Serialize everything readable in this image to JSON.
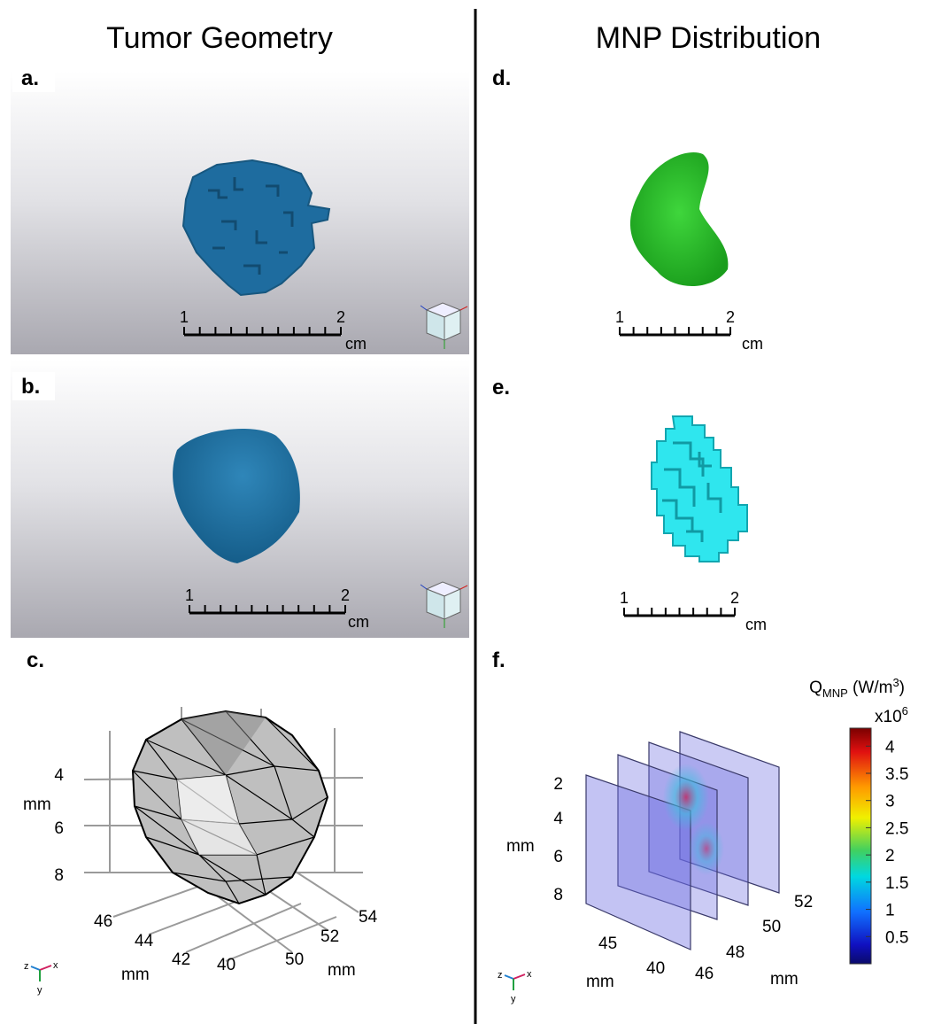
{
  "columns": [
    {
      "title": "Tumor Geometry"
    },
    {
      "title": "MNP Distribution"
    }
  ],
  "panels": {
    "a": {
      "label": "a.",
      "scale_bar": {
        "start": 1,
        "end": 2,
        "unit": "cm"
      }
    },
    "b": {
      "label": "b.",
      "scale_bar": {
        "start": 1,
        "end": 2,
        "unit": "cm"
      }
    },
    "c": {
      "label": "c.",
      "z_ticks": [
        4,
        6,
        8
      ],
      "z_label": "mm",
      "x_ticks": [
        46,
        44,
        42,
        40
      ],
      "x_label": "mm",
      "y_ticks": [
        50,
        52,
        54
      ],
      "y_label": "mm",
      "triad": [
        "z",
        "x",
        "y"
      ]
    },
    "d": {
      "label": "d.",
      "scale_bar": {
        "start": 1,
        "end": 2,
        "unit": "cm"
      }
    },
    "e": {
      "label": "e.",
      "scale_bar": {
        "start": 1,
        "end": 2,
        "unit": "cm"
      }
    },
    "f": {
      "label": "f.",
      "z_ticks": [
        2,
        4,
        6,
        8
      ],
      "z_label": "mm",
      "x_ticks": [
        45,
        40
      ],
      "x_label": "mm",
      "y_ticks": [
        46,
        48,
        50,
        52
      ],
      "y_label": "mm",
      "triad": [
        "z",
        "x",
        "y"
      ],
      "colorbar": {
        "title": {
          "symbol": "Q",
          "subscript": "MNP",
          "unit": " (W/m",
          "superscript": "3",
          "close": ")"
        },
        "multiplier": {
          "base": "x10",
          "exponent": "6"
        },
        "range": [
          0,
          4.33
        ],
        "ticks": [
          4,
          3.5,
          3,
          2.5,
          2,
          1.5,
          1,
          0.5
        ]
      }
    }
  }
}
